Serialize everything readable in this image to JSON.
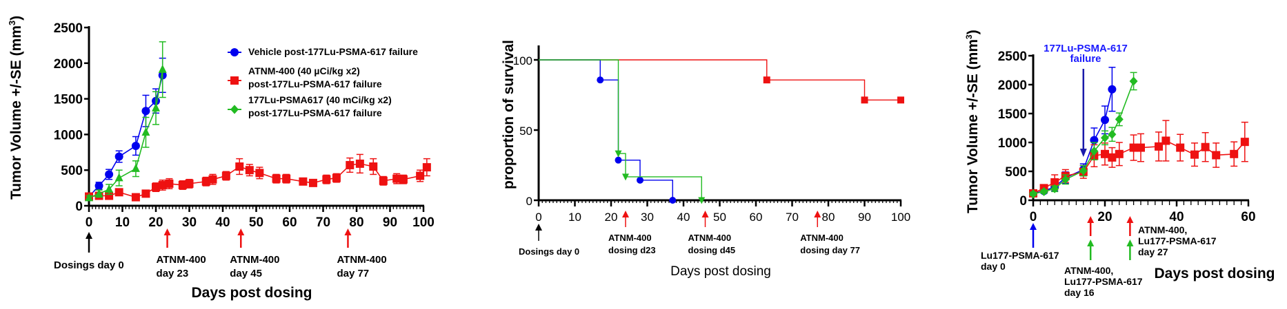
{
  "chart_data": [
    {
      "type": "line",
      "title": "",
      "xlabel": "Days post dosing",
      "ylabel": "Tumor Volume +/-SE (mm",
      "ylabel_sup": "3",
      "ylabel_close": ")",
      "xlim": [
        0,
        100
      ],
      "ylim": [
        0,
        2500
      ],
      "xticks": [
        0,
        10,
        20,
        30,
        40,
        50,
        60,
        70,
        80,
        90,
        100
      ],
      "yticks": [
        0,
        500,
        1000,
        1500,
        2000,
        2500
      ],
      "grid": false,
      "legend_position": "top-right",
      "series": [
        {
          "name": "Vehicle post-177Lu-PSMA-617 failure",
          "color": "#0000ee",
          "marker": "circle",
          "x": [
            0,
            3,
            6,
            9,
            14,
            17,
            20,
            22
          ],
          "y": [
            130,
            280,
            440,
            690,
            840,
            1330,
            1470,
            1830
          ],
          "err": [
            30,
            50,
            70,
            80,
            130,
            220,
            170,
            240
          ]
        },
        {
          "name": "ATNM-400 (40 µCi/kg x2) post-177Lu-PSMA-617 failure",
          "color": "#ee1111",
          "marker": "square",
          "x": [
            0,
            3,
            6,
            9,
            14,
            17,
            20,
            22,
            24,
            28,
            30,
            35,
            37,
            41,
            45,
            48,
            51,
            56,
            59,
            64,
            67,
            71,
            74,
            78,
            81,
            85,
            88,
            92,
            94,
            99,
            101
          ],
          "y": [
            130,
            140,
            140,
            190,
            120,
            170,
            260,
            290,
            310,
            290,
            310,
            340,
            370,
            420,
            550,
            500,
            460,
            380,
            380,
            340,
            320,
            370,
            390,
            570,
            590,
            550,
            350,
            380,
            370,
            420,
            540
          ],
          "err": [
            20,
            30,
            30,
            30,
            20,
            30,
            60,
            70,
            70,
            60,
            60,
            60,
            70,
            60,
            110,
            80,
            80,
            60,
            60,
            30,
            30,
            60,
            60,
            100,
            130,
            110,
            60,
            70,
            60,
            80,
            120
          ]
        },
        {
          "name": "177Lu-PSMA617 (40 mCi/kg x2) post-177Lu-PSMA-617 failure",
          "color": "#22bb22",
          "marker": "triangle",
          "x": [
            0,
            3,
            6,
            9,
            14,
            17,
            20,
            22
          ],
          "y": [
            110,
            170,
            230,
            390,
            520,
            1030,
            1370,
            1910
          ],
          "err": [
            30,
            50,
            70,
            110,
            110,
            210,
            230,
            390
          ]
        }
      ],
      "annotations": [
        {
          "x": 0,
          "color": "#000000",
          "lines": [
            "Dosings day 0"
          ]
        },
        {
          "x": 23,
          "color": "#ee1111",
          "lines": [
            "ATNM-400",
            "day 23"
          ]
        },
        {
          "x": 45,
          "color": "#ee1111",
          "lines": [
            "ATNM-400",
            "day 45"
          ]
        },
        {
          "x": 77,
          "color": "#ee1111",
          "lines": [
            "ATNM-400",
            "day 77"
          ]
        }
      ]
    },
    {
      "type": "line",
      "subtype": "survival-step",
      "title": "",
      "xlabel": "Days post dosing",
      "ylabel": "proportion of survival",
      "xlim": [
        0,
        100
      ],
      "ylim": [
        0,
        100
      ],
      "xticks": [
        0,
        10,
        20,
        30,
        40,
        50,
        60,
        70,
        80,
        90,
        100
      ],
      "yticks": [
        0,
        50,
        100
      ],
      "grid": false,
      "series": [
        {
          "name": "Vehicle",
          "color": "#0000ee",
          "marker": "circle",
          "x": [
            0,
            17,
            22,
            28,
            37
          ],
          "y": [
            100,
            85.7,
            28.6,
            14.3,
            0
          ]
        },
        {
          "name": "ATNM-400",
          "color": "#ee1111",
          "marker": "square",
          "x": [
            0,
            63,
            90,
            100
          ],
          "y": [
            100,
            85.7,
            71.4,
            71.4
          ]
        },
        {
          "name": "177Lu-PSMA617",
          "color": "#22bb22",
          "marker": "triangle-down",
          "x": [
            0,
            22,
            24,
            45
          ],
          "y": [
            100,
            33.3,
            16.7,
            0
          ]
        }
      ],
      "annotations": [
        {
          "x": 0,
          "color": "#000000",
          "lines": [
            "Dosings day 0"
          ]
        },
        {
          "x": 24,
          "color": "#ee1111",
          "lines": [
            "ATNM-400",
            "dosing d23"
          ]
        },
        {
          "x": 46,
          "color": "#ee1111",
          "lines": [
            "ATNM-400",
            "dosing d45"
          ]
        },
        {
          "x": 77,
          "color": "#ee1111",
          "lines": [
            "ATNM-400",
            "dosing day 77"
          ]
        }
      ]
    },
    {
      "type": "line",
      "title": "",
      "xlabel": "Days post dosing",
      "ylabel": "Tumor Volume +/-SE (mm",
      "ylabel_sup": "3",
      "ylabel_close": ")",
      "xlim": [
        0,
        60
      ],
      "ylim": [
        0,
        2500
      ],
      "xticks": [
        0,
        20,
        40,
        60
      ],
      "yticks": [
        0,
        500,
        1000,
        1500,
        2000,
        2500
      ],
      "grid": false,
      "series": [
        {
          "name": "Vehicle",
          "color": "#0000ee",
          "marker": "circle",
          "x": [
            0,
            3,
            6,
            9,
            14,
            17,
            20,
            22
          ],
          "y": [
            120,
            160,
            230,
            390,
            530,
            1040,
            1390,
            1920
          ],
          "err": [
            40,
            40,
            70,
            100,
            100,
            210,
            240,
            380
          ]
        },
        {
          "name": "ATNM-400",
          "color": "#ee1111",
          "marker": "square",
          "x": [
            0,
            3,
            6,
            9,
            14,
            17,
            20,
            22,
            24,
            28,
            30,
            35,
            37,
            41,
            45,
            48,
            51,
            56,
            59
          ],
          "y": [
            120,
            210,
            310,
            420,
            490,
            770,
            800,
            740,
            800,
            910,
            910,
            930,
            1030,
            910,
            790,
            920,
            780,
            800,
            1010
          ],
          "err": [
            30,
            40,
            130,
            110,
            110,
            190,
            190,
            170,
            200,
            220,
            240,
            250,
            350,
            230,
            200,
            250,
            210,
            210,
            340
          ]
        },
        {
          "name": "177Lu-PSMA617",
          "color": "#22bb22",
          "marker": "diamond",
          "x": [
            0,
            3,
            6,
            9,
            14,
            17,
            20,
            22,
            24,
            28
          ],
          "y": [
            110,
            150,
            200,
            360,
            510,
            850,
            1080,
            1140,
            1400,
            2060
          ],
          "err": [
            30,
            30,
            50,
            80,
            90,
            150,
            120,
            120,
            110,
            150
          ]
        }
      ],
      "callout": {
        "lines": [
          "177Lu-PSMA-617",
          "failure"
        ],
        "x": 14,
        "color": "#1a1aaa"
      },
      "annotations": [
        {
          "x": 0,
          "color": "#0000ee",
          "lines": [
            "Lu177-PSMA-617",
            "day 0"
          ]
        },
        {
          "x": 16,
          "color": "#ee1111",
          "color2": "#22bb22",
          "lines": [
            "ATNM-400,",
            "Lu177-PSMA-617",
            "day 16"
          ]
        },
        {
          "x": 27,
          "color": "#ee1111",
          "color2": "#22bb22",
          "lines": [
            "ATNM-400,",
            "Lu177-PSMA-617",
            "day 27"
          ]
        }
      ]
    }
  ]
}
